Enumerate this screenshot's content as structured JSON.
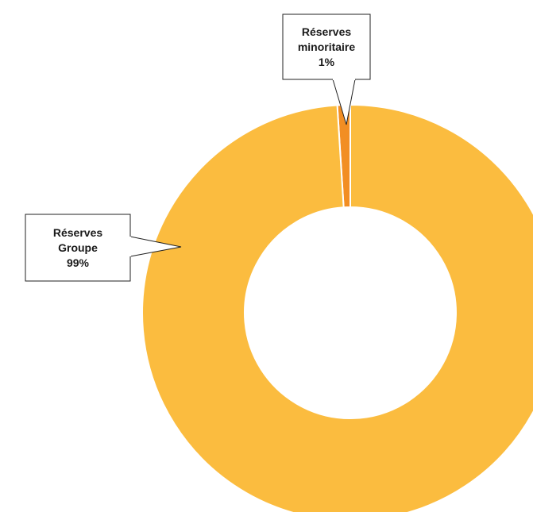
{
  "chart_data": {
    "type": "pie",
    "variant": "donut",
    "title": "",
    "slices": [
      {
        "label_lines": [
          "Réserves",
          "minoritaire",
          "1%"
        ],
        "value": 1,
        "color": "#F28E23"
      },
      {
        "label_lines": [
          "Réserves",
          "Groupe",
          "99%"
        ],
        "value": 99,
        "color": "#FBBC3F"
      }
    ],
    "legend": "none",
    "labels": "callouts"
  }
}
